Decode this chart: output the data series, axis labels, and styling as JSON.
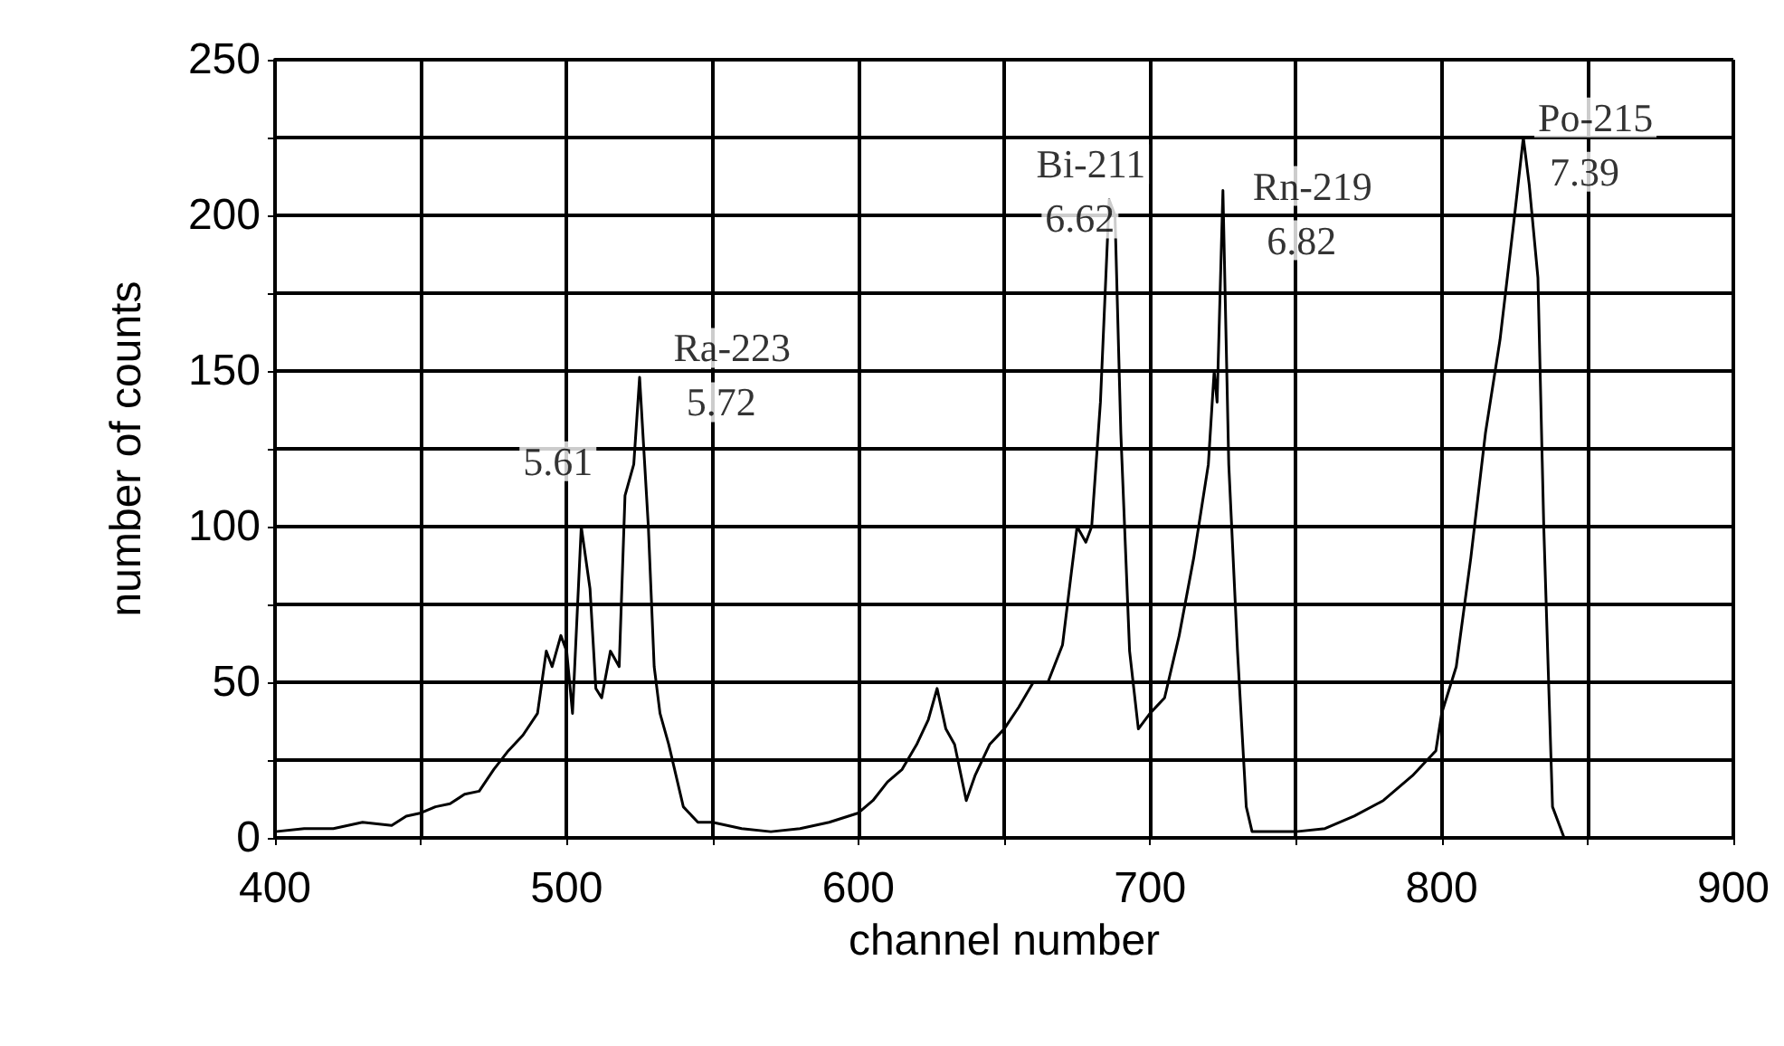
{
  "chart_data": {
    "type": "line",
    "xlabel": "channel number",
    "ylabel": "number of counts",
    "xlim": [
      400,
      900
    ],
    "xticks": [
      400,
      {
        "value": 450,
        "label": null
      },
      500,
      {
        "value": 550,
        "label": null
      },
      600,
      {
        "value": 650,
        "label": null
      },
      700,
      {
        "value": 750,
        "label": null
      },
      800,
      {
        "value": 850,
        "label": null
      },
      900
    ],
    "ylim": [
      0,
      250
    ],
    "yticks": [
      0,
      {
        "value": 25,
        "label": null
      },
      50,
      {
        "value": 75,
        "label": null
      },
      100,
      {
        "value": 125,
        "label": null
      },
      150,
      {
        "value": 175,
        "label": null
      },
      200,
      {
        "value": 225,
        "label": null
      },
      250
    ],
    "grid": true,
    "marker": "none",
    "line_style": "solid",
    "series": [
      {
        "color": "#000000",
        "x": [
          400,
          410,
          420,
          430,
          440,
          445,
          450,
          455,
          460,
          465,
          470,
          475,
          480,
          485,
          490,
          493,
          495,
          498,
          500,
          502,
          505,
          508,
          510,
          512,
          515,
          518,
          520,
          523,
          525,
          528,
          530,
          532,
          535,
          540,
          545,
          550,
          560,
          570,
          580,
          590,
          600,
          605,
          610,
          615,
          620,
          624,
          627,
          630,
          633,
          637,
          640,
          645,
          650,
          655,
          660,
          665,
          670,
          673,
          675,
          678,
          680,
          683,
          686,
          688,
          690,
          693,
          696,
          700,
          705,
          710,
          715,
          720,
          722,
          723,
          725,
          727,
          730,
          733,
          735,
          740,
          750,
          760,
          770,
          780,
          790,
          795,
          798,
          800,
          805,
          810,
          815,
          820,
          825,
          828,
          830,
          833,
          835,
          838,
          842
        ],
        "values": [
          2,
          3,
          3,
          5,
          4,
          7,
          8,
          10,
          11,
          14,
          15,
          22,
          28,
          33,
          40,
          60,
          55,
          65,
          60,
          40,
          100,
          80,
          48,
          45,
          60,
          55,
          110,
          120,
          148,
          100,
          55,
          40,
          30,
          10,
          5,
          5,
          3,
          2,
          3,
          5,
          8,
          12,
          18,
          22,
          30,
          38,
          48,
          35,
          30,
          12,
          20,
          30,
          35,
          42,
          50,
          50,
          62,
          85,
          100,
          95,
          100,
          140,
          205,
          200,
          130,
          60,
          35,
          40,
          45,
          65,
          90,
          120,
          150,
          140,
          208,
          120,
          60,
          10,
          2,
          2,
          2,
          3,
          7,
          12,
          20,
          25,
          28,
          40,
          55,
          90,
          130,
          160,
          200,
          225,
          210,
          180,
          100,
          10,
          0
        ]
      }
    ],
    "annotations": [
      {
        "text": "5.61",
        "x": 497,
        "y": 121
      },
      "Ra-223",
      {
        "text": "5.72",
        "x": 553,
        "y": 140
      },
      "Bi-211",
      {
        "text": "6.62",
        "x": 676,
        "y": 199
      },
      "Rn-219",
      {
        "text": "6.82",
        "x": 752,
        "y": 192
      },
      "Po-215",
      {
        "text": "7.39",
        "x": 849,
        "y": 214
      }
    ]
  }
}
